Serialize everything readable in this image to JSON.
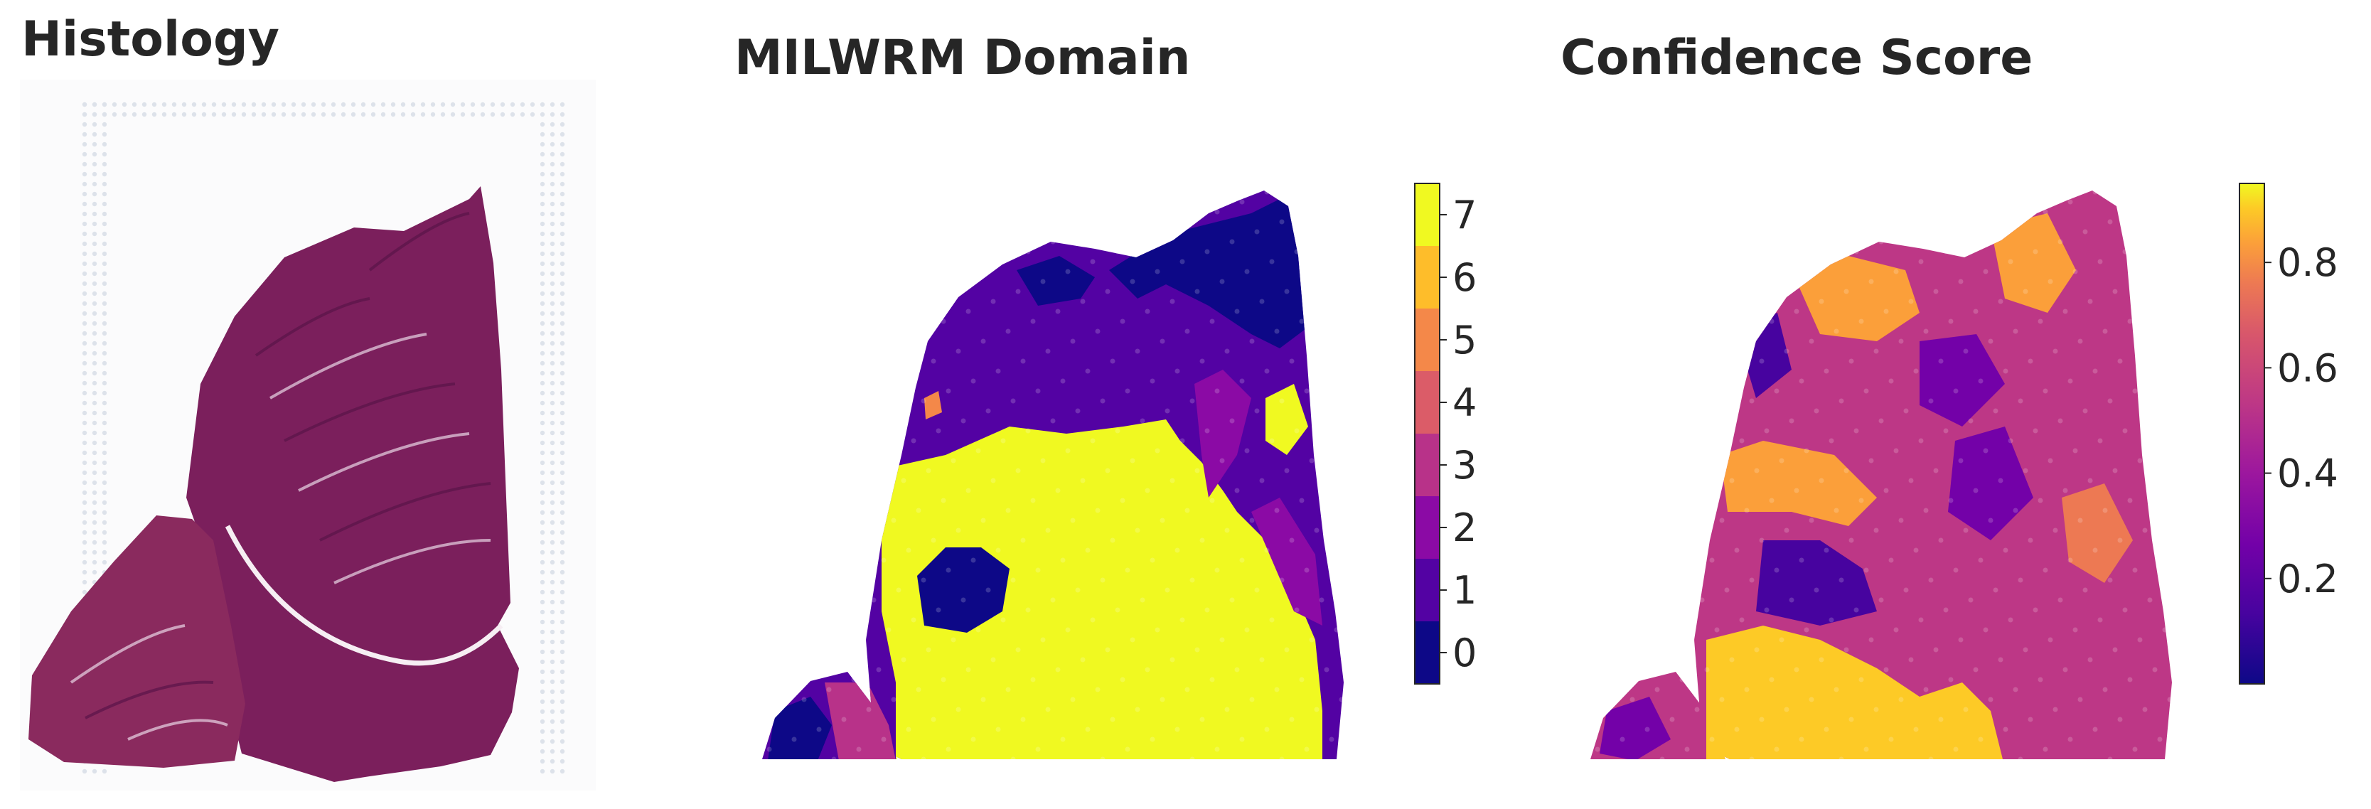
{
  "panels": {
    "histology_title": "Histology",
    "domain_title": "MILWRM Domain",
    "confidence_title": "Confidence Score"
  },
  "chart_data": [
    {
      "type": "image",
      "title": "Histology"
    },
    {
      "type": "heatmap",
      "title": "MILWRM Domain",
      "colorbar": {
        "kind": "discrete",
        "range": [
          -0.5,
          7.5
        ],
        "ticks": [
          0,
          1,
          2,
          3,
          4,
          5,
          6,
          7
        ],
        "tick_labels": [
          "0",
          "1",
          "2",
          "3",
          "4",
          "5",
          "6",
          "7"
        ],
        "colors": [
          "#0d0887",
          "#5302a3",
          "#8b0aa5",
          "#b83289",
          "#db5c68",
          "#f48849",
          "#febd2a",
          "#f0f921"
        ]
      },
      "dominant_domains": [
        7,
        1,
        0,
        2
      ]
    },
    {
      "type": "heatmap",
      "title": "Confidence Score",
      "colorbar": {
        "kind": "continuous",
        "colormap": "plasma",
        "range": [
          0.0,
          0.95
        ],
        "ticks": [
          0.2,
          0.4,
          0.6,
          0.8
        ],
        "tick_labels": [
          "0.2",
          "0.4",
          "0.6",
          "0.8"
        ]
      }
    }
  ]
}
